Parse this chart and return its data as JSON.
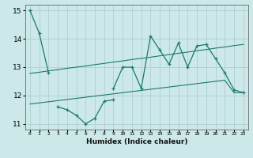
{
  "xlabel": "Humidex (Indice chaleur)",
  "x_values": [
    0,
    1,
    2,
    3,
    4,
    5,
    6,
    7,
    8,
    9,
    10,
    11,
    12,
    13,
    14,
    15,
    16,
    17,
    18,
    19,
    20,
    21,
    22,
    23
  ],
  "line_zigzag": [
    15.0,
    14.2,
    12.8,
    null,
    null,
    null,
    null,
    null,
    null,
    12.25,
    13.0,
    13.0,
    12.25,
    14.1,
    13.6,
    13.1,
    13.85,
    13.0,
    13.75,
    13.8,
    13.3,
    12.8,
    12.2,
    12.1
  ],
  "line_low": [
    null,
    null,
    null,
    11.6,
    11.5,
    11.3,
    11.0,
    11.2,
    11.8,
    11.85,
    null,
    null,
    null,
    null,
    null,
    null,
    null,
    null,
    null,
    null,
    null,
    null,
    null,
    null
  ],
  "trend_upper": [
    12.78,
    12.82,
    12.87,
    12.91,
    12.96,
    13.0,
    13.04,
    13.09,
    13.13,
    13.18,
    13.22,
    13.27,
    13.31,
    13.35,
    13.4,
    13.44,
    13.49,
    13.53,
    13.58,
    13.62,
    13.67,
    13.71,
    13.76,
    13.8
  ],
  "trend_lower": [
    11.7,
    11.74,
    11.78,
    11.82,
    11.86,
    11.9,
    11.94,
    11.98,
    12.02,
    12.06,
    12.1,
    12.14,
    12.18,
    12.22,
    12.26,
    12.3,
    12.34,
    12.38,
    12.42,
    12.46,
    12.5,
    12.54,
    12.1,
    12.1
  ],
  "line_color": "#1a7a6e",
  "bg_color": "#cce8e8",
  "grid_color": "#b0d0d0",
  "ylim": [
    10.8,
    15.2
  ],
  "yticks": [
    11,
    12,
    13,
    14,
    15
  ],
  "xlim": [
    -0.5,
    23.5
  ]
}
